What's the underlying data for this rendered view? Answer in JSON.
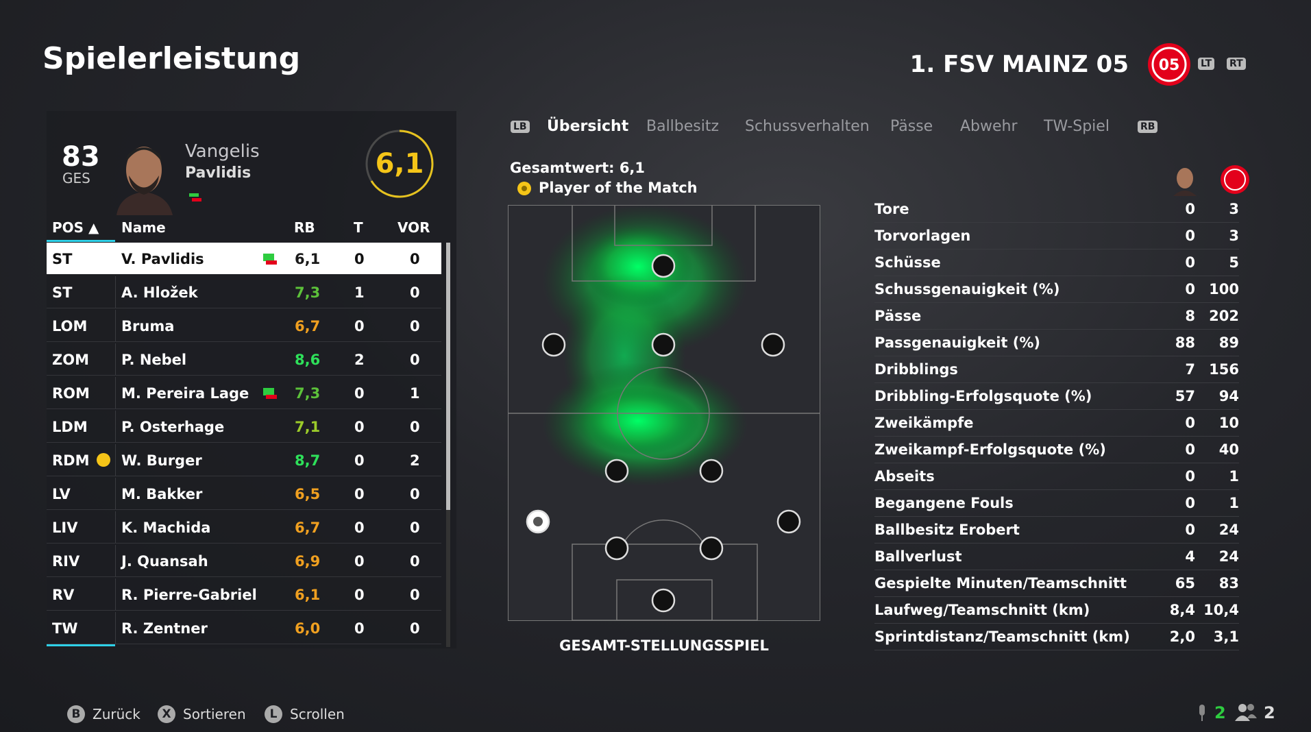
{
  "header": {
    "title": "Spielerleistung",
    "team": "1. FSV MAINZ 05",
    "lt": "LT",
    "rt": "RT"
  },
  "player_card": {
    "overall": "83",
    "overall_label": "GES",
    "first_name": "Vangelis",
    "last_name": "Pavlidis",
    "rating": "6,1"
  },
  "tabs": {
    "left_button": "LB",
    "right_button": "RB",
    "items": [
      "Übersicht",
      "Ballbesitz",
      "Schussverhalten",
      "Pässe",
      "Abwehr",
      "TW-Spiel"
    ],
    "active": 0
  },
  "table": {
    "columns": [
      "POS ▲",
      "Name",
      "RB",
      "T",
      "VOR"
    ],
    "selected": 0,
    "rows": [
      {
        "pos": "ST",
        "name": "V. Pavlidis",
        "rb": "6,1",
        "t": "0",
        "vor": "0",
        "rb_color": "#1a1a1a",
        "icon": "sub"
      },
      {
        "pos": "ST",
        "name": "A. Hložek",
        "rb": "7,3",
        "t": "1",
        "vor": "0",
        "rb_color": "#5cc13a"
      },
      {
        "pos": "LOM",
        "name": "Bruma",
        "rb": "6,7",
        "t": "0",
        "vor": "0",
        "rb_color": "#f0a020"
      },
      {
        "pos": "ZOM",
        "name": "P. Nebel",
        "rb": "8,6",
        "t": "2",
        "vor": "0",
        "rb_color": "#2ee05a"
      },
      {
        "pos": "ROM",
        "name": "M. Pereira Lage",
        "rb": "7,3",
        "t": "0",
        "vor": "1",
        "rb_color": "#5cc13a",
        "icon": "sub"
      },
      {
        "pos": "LDM",
        "name": "P. Osterhage",
        "rb": "7,1",
        "t": "0",
        "vor": "0",
        "rb_color": "#9ccc2a"
      },
      {
        "pos": "RDM",
        "name": "W. Burger",
        "rb": "8,7",
        "t": "0",
        "vor": "2",
        "rb_color": "#2ee05a",
        "icon": "potm"
      },
      {
        "pos": "LV",
        "name": "M. Bakker",
        "rb": "6,5",
        "t": "0",
        "vor": "0",
        "rb_color": "#f0a020"
      },
      {
        "pos": "LIV",
        "name": "K. Machida",
        "rb": "6,7",
        "t": "0",
        "vor": "0",
        "rb_color": "#f0a020"
      },
      {
        "pos": "RIV",
        "name": "J. Quansah",
        "rb": "6,9",
        "t": "0",
        "vor": "0",
        "rb_color": "#f0a020"
      },
      {
        "pos": "RV",
        "name": "R. Pierre-Gabriel",
        "rb": "6,1",
        "t": "0",
        "vor": "0",
        "rb_color": "#f0a020"
      },
      {
        "pos": "TW",
        "name": "R. Zentner",
        "rb": "6,0",
        "t": "0",
        "vor": "0",
        "rb_color": "#f0a020"
      }
    ]
  },
  "overview": {
    "total": "Gesamtwert: 6,1",
    "potm": "Player of the Match",
    "pitch_label": "GESAMT-STELLUNGSSPIEL"
  },
  "stats": [
    {
      "label": "Tore",
      "player": "0",
      "team": "3"
    },
    {
      "label": "Torvorlagen",
      "player": "0",
      "team": "3"
    },
    {
      "label": "Schüsse",
      "player": "0",
      "team": "5"
    },
    {
      "label": "Schussgenauigkeit (%)",
      "player": "0",
      "team": "100"
    },
    {
      "label": "Pässe",
      "player": "8",
      "team": "202"
    },
    {
      "label": "Passgenauigkeit (%)",
      "player": "88",
      "team": "89"
    },
    {
      "label": "Dribblings",
      "player": "7",
      "team": "156"
    },
    {
      "label": "Dribbling-Erfolgsquote (%)",
      "player": "57",
      "team": "94"
    },
    {
      "label": "Zweikämpfe",
      "player": "0",
      "team": "10"
    },
    {
      "label": "Zweikampf-Erfolgsquote (%)",
      "player": "0",
      "team": "40"
    },
    {
      "label": "Abseits",
      "player": "0",
      "team": "1"
    },
    {
      "label": "Begangene Fouls",
      "player": "0",
      "team": "1"
    },
    {
      "label": "Ballbesitz Erobert",
      "player": "0",
      "team": "24"
    },
    {
      "label": "Ballverlust",
      "player": "4",
      "team": "24"
    },
    {
      "label": "Gespielte Minuten/Teamschnitt",
      "player": "65",
      "team": "83"
    },
    {
      "label": "Laufweg/Teamschnitt (km)",
      "player": "8,4",
      "team": "10,4"
    },
    {
      "label": "Sprintdistanz/Teamschnitt (km)",
      "player": "2,0",
      "team": "3,1"
    }
  ],
  "footer": {
    "buttons": [
      {
        "key": "B",
        "label": "Zurück"
      },
      {
        "key": "X",
        "label": "Sortieren"
      },
      {
        "key": "L",
        "label": "Scrollen"
      }
    ],
    "mic_count": "2",
    "party_count": "2"
  }
}
